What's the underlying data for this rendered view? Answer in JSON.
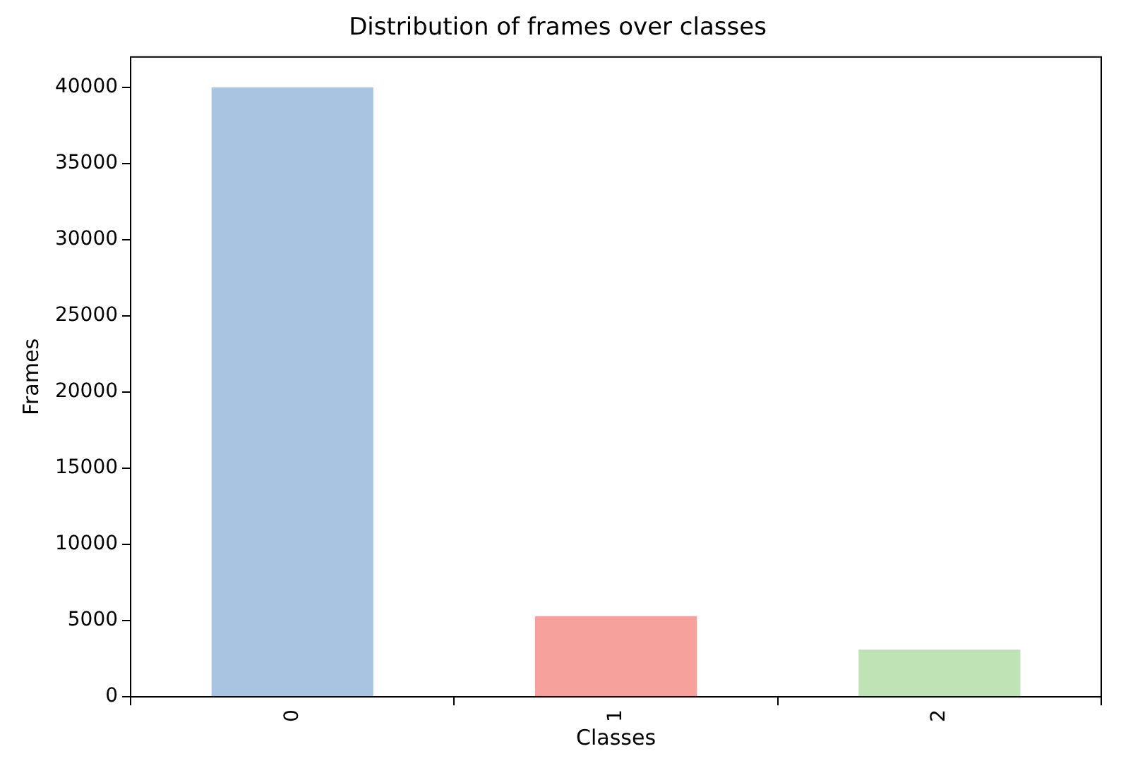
{
  "chart_data": {
    "type": "bar",
    "title": "Distribution of frames over classes",
    "xlabel": "Classes",
    "ylabel": "Frames",
    "categories": [
      "0",
      "1",
      "2"
    ],
    "values": [
      40000,
      5300,
      3100
    ],
    "colors": [
      "#a8c4e0",
      "#f7a19c",
      "#bfe3b4"
    ],
    "ylim": [
      0,
      42000
    ],
    "yticks": [
      0,
      5000,
      10000,
      15000,
      20000,
      25000,
      30000,
      35000,
      40000
    ],
    "grid": false,
    "legend": false
  }
}
